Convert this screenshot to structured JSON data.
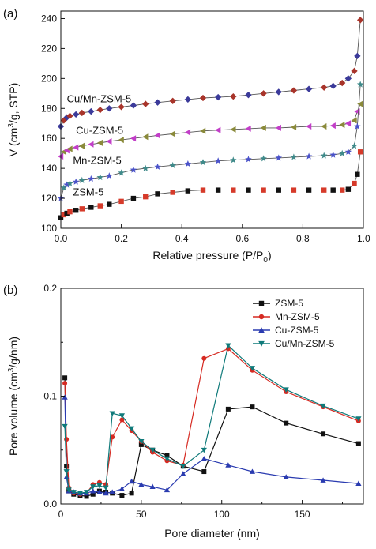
{
  "chart_data": [
    {
      "panel": "(a)",
      "type": "line",
      "xlabel_main": "Relative pressure (P/P",
      "xlabel_sub": "0",
      "xlabel_close": ")",
      "ylabel_pre": "V (cm",
      "ylabel_sup": "3",
      "ylabel_post": "/g, STP)",
      "xlim": [
        0.0,
        1.0
      ],
      "ylim": [
        100,
        245
      ],
      "xticks": [
        "0.0",
        "0.2",
        "0.4",
        "0.6",
        "0.8",
        "1.0"
      ],
      "yticks": [
        "100",
        "120",
        "140",
        "160",
        "180",
        "200",
        "220",
        "240"
      ],
      "series": [
        {
          "name": "Cu/Mn-ZSM-5",
          "label_at": [
            0.02,
            184
          ],
          "color_fill": "#3b3a9a",
          "color_alt": "#a8342a",
          "marker": "diamond",
          "x": [
            0.0,
            0.01,
            0.02,
            0.03,
            0.05,
            0.07,
            0.1,
            0.13,
            0.16,
            0.2,
            0.24,
            0.28,
            0.32,
            0.37,
            0.42,
            0.47,
            0.52,
            0.57,
            0.62,
            0.67,
            0.72,
            0.77,
            0.82,
            0.87,
            0.9,
            0.93,
            0.95,
            0.97,
            0.98,
            0.99
          ],
          "y": [
            168,
            172,
            174,
            175,
            176,
            177,
            178,
            179,
            180,
            181,
            182,
            183,
            184,
            185,
            186,
            187,
            187.5,
            188,
            189,
            190,
            191,
            192,
            193,
            194,
            195,
            197,
            200,
            205,
            215,
            239
          ]
        },
        {
          "name": "Cu-ZSM-5",
          "label_at": [
            0.05,
            163
          ],
          "color_fill": "#c23ec8",
          "color_alt": "#8a8a3a",
          "marker": "triangle-left",
          "x": [
            0.0,
            0.01,
            0.02,
            0.03,
            0.05,
            0.07,
            0.1,
            0.13,
            0.16,
            0.2,
            0.24,
            0.28,
            0.32,
            0.37,
            0.42,
            0.47,
            0.52,
            0.57,
            0.62,
            0.67,
            0.72,
            0.77,
            0.82,
            0.87,
            0.9,
            0.93,
            0.95,
            0.97,
            0.98,
            0.99
          ],
          "y": [
            148,
            151,
            152,
            153,
            154,
            155,
            156,
            157,
            158,
            159,
            160,
            161,
            162,
            163,
            164,
            165,
            165.5,
            166,
            166.5,
            167,
            167,
            167.5,
            168,
            168,
            168.5,
            169,
            170,
            172,
            178,
            183
          ]
        },
        {
          "name": "Mn-ZSM-5",
          "label_at": [
            0.04,
            143
          ],
          "color_fill": "#4a52c9",
          "color_alt": "#3f8a8a",
          "marker": "star",
          "x": [
            0.0,
            0.01,
            0.02,
            0.03,
            0.05,
            0.07,
            0.1,
            0.13,
            0.16,
            0.2,
            0.24,
            0.28,
            0.32,
            0.37,
            0.42,
            0.47,
            0.52,
            0.57,
            0.62,
            0.67,
            0.72,
            0.77,
            0.82,
            0.87,
            0.9,
            0.93,
            0.95,
            0.97,
            0.98,
            0.99
          ],
          "y": [
            120,
            127,
            129,
            130,
            131,
            132,
            133,
            134,
            135,
            137,
            139,
            140,
            141,
            142,
            143,
            144,
            145,
            145.5,
            146,
            146.5,
            147,
            147.5,
            148,
            148.5,
            149,
            150,
            151,
            155,
            168,
            196
          ]
        },
        {
          "name": "ZSM-5",
          "label_at": [
            0.04,
            122
          ],
          "color_fill": "#111111",
          "color_alt": "#d63a2a",
          "marker": "square",
          "x": [
            0.0,
            0.01,
            0.02,
            0.03,
            0.05,
            0.07,
            0.1,
            0.13,
            0.16,
            0.2,
            0.24,
            0.28,
            0.32,
            0.37,
            0.42,
            0.47,
            0.52,
            0.57,
            0.62,
            0.67,
            0.72,
            0.77,
            0.82,
            0.87,
            0.9,
            0.93,
            0.95,
            0.97,
            0.98,
            0.99
          ],
          "y": [
            107,
            109,
            110,
            111,
            112,
            113,
            114,
            115,
            116,
            118,
            120,
            121,
            123,
            124,
            125,
            125.5,
            125.5,
            125.5,
            125.5,
            125.5,
            125.5,
            125.5,
            125.5,
            125.5,
            125.5,
            125.5,
            126,
            130,
            136,
            151
          ]
        }
      ]
    },
    {
      "panel": "(b)",
      "type": "line",
      "xlabel": "Pore diameter (nm)",
      "ylabel_pre": "Pore volume (cm",
      "ylabel_sup": "3",
      "ylabel_post": "/g/nm)",
      "xlim": [
        0,
        188
      ],
      "ylim": [
        0,
        0.2
      ],
      "xticks": [
        0,
        50,
        100,
        150
      ],
      "xtick_labels": [
        "0",
        "50",
        "100",
        "150"
      ],
      "yticks": [
        0,
        0.1,
        0.2
      ],
      "ytick_labels": [
        "0.0",
        "0.1",
        "0.2"
      ],
      "legend_position": "top-right",
      "series": [
        {
          "name": "ZSM-5",
          "color": "#111111",
          "marker": "square",
          "x": [
            2.5,
            3.5,
            5,
            8,
            12,
            16,
            20,
            24,
            28,
            32,
            38,
            44,
            50,
            57,
            66,
            76,
            89,
            104,
            119,
            140,
            163,
            185
          ],
          "y": [
            0.117,
            0.035,
            0.012,
            0.009,
            0.008,
            0.007,
            0.009,
            0.012,
            0.011,
            0.01,
            0.008,
            0.01,
            0.055,
            0.05,
            0.045,
            0.035,
            0.03,
            0.088,
            0.09,
            0.075,
            0.065,
            0.056
          ]
        },
        {
          "name": "Mn-ZSM-5",
          "color": "#d62a22",
          "marker": "circle",
          "x": [
            2.5,
            3.5,
            5,
            8,
            12,
            16,
            20,
            24,
            28,
            32,
            38,
            44,
            50,
            57,
            66,
            76,
            89,
            104,
            119,
            140,
            163,
            185
          ],
          "y": [
            0.112,
            0.06,
            0.015,
            0.01,
            0.009,
            0.01,
            0.018,
            0.02,
            0.018,
            0.062,
            0.078,
            0.068,
            0.058,
            0.048,
            0.04,
            0.036,
            0.135,
            0.144,
            0.124,
            0.104,
            0.09,
            0.077
          ]
        },
        {
          "name": "Cu-ZSM-5",
          "color": "#2a3bb0",
          "marker": "triangle-up",
          "x": [
            2.5,
            3.5,
            5,
            8,
            12,
            16,
            20,
            24,
            28,
            32,
            38,
            44,
            50,
            57,
            66,
            76,
            89,
            104,
            119,
            140,
            163,
            185
          ],
          "y": [
            0.099,
            0.025,
            0.012,
            0.011,
            0.01,
            0.01,
            0.012,
            0.011,
            0.01,
            0.011,
            0.014,
            0.021,
            0.018,
            0.016,
            0.013,
            0.028,
            0.042,
            0.036,
            0.03,
            0.025,
            0.022,
            0.019
          ]
        },
        {
          "name": "Cu/Mn-ZSM-5",
          "color": "#0f7a7a",
          "marker": "triangle-down",
          "x": [
            2.5,
            3.5,
            5,
            8,
            12,
            16,
            20,
            24,
            28,
            32,
            38,
            44,
            50,
            57,
            66,
            76,
            89,
            104,
            119,
            140,
            163,
            185
          ],
          "y": [
            0.072,
            0.03,
            0.013,
            0.011,
            0.01,
            0.011,
            0.016,
            0.017,
            0.015,
            0.084,
            0.082,
            0.07,
            0.058,
            0.05,
            0.042,
            0.035,
            0.05,
            0.147,
            0.126,
            0.106,
            0.091,
            0.079
          ]
        }
      ]
    }
  ]
}
